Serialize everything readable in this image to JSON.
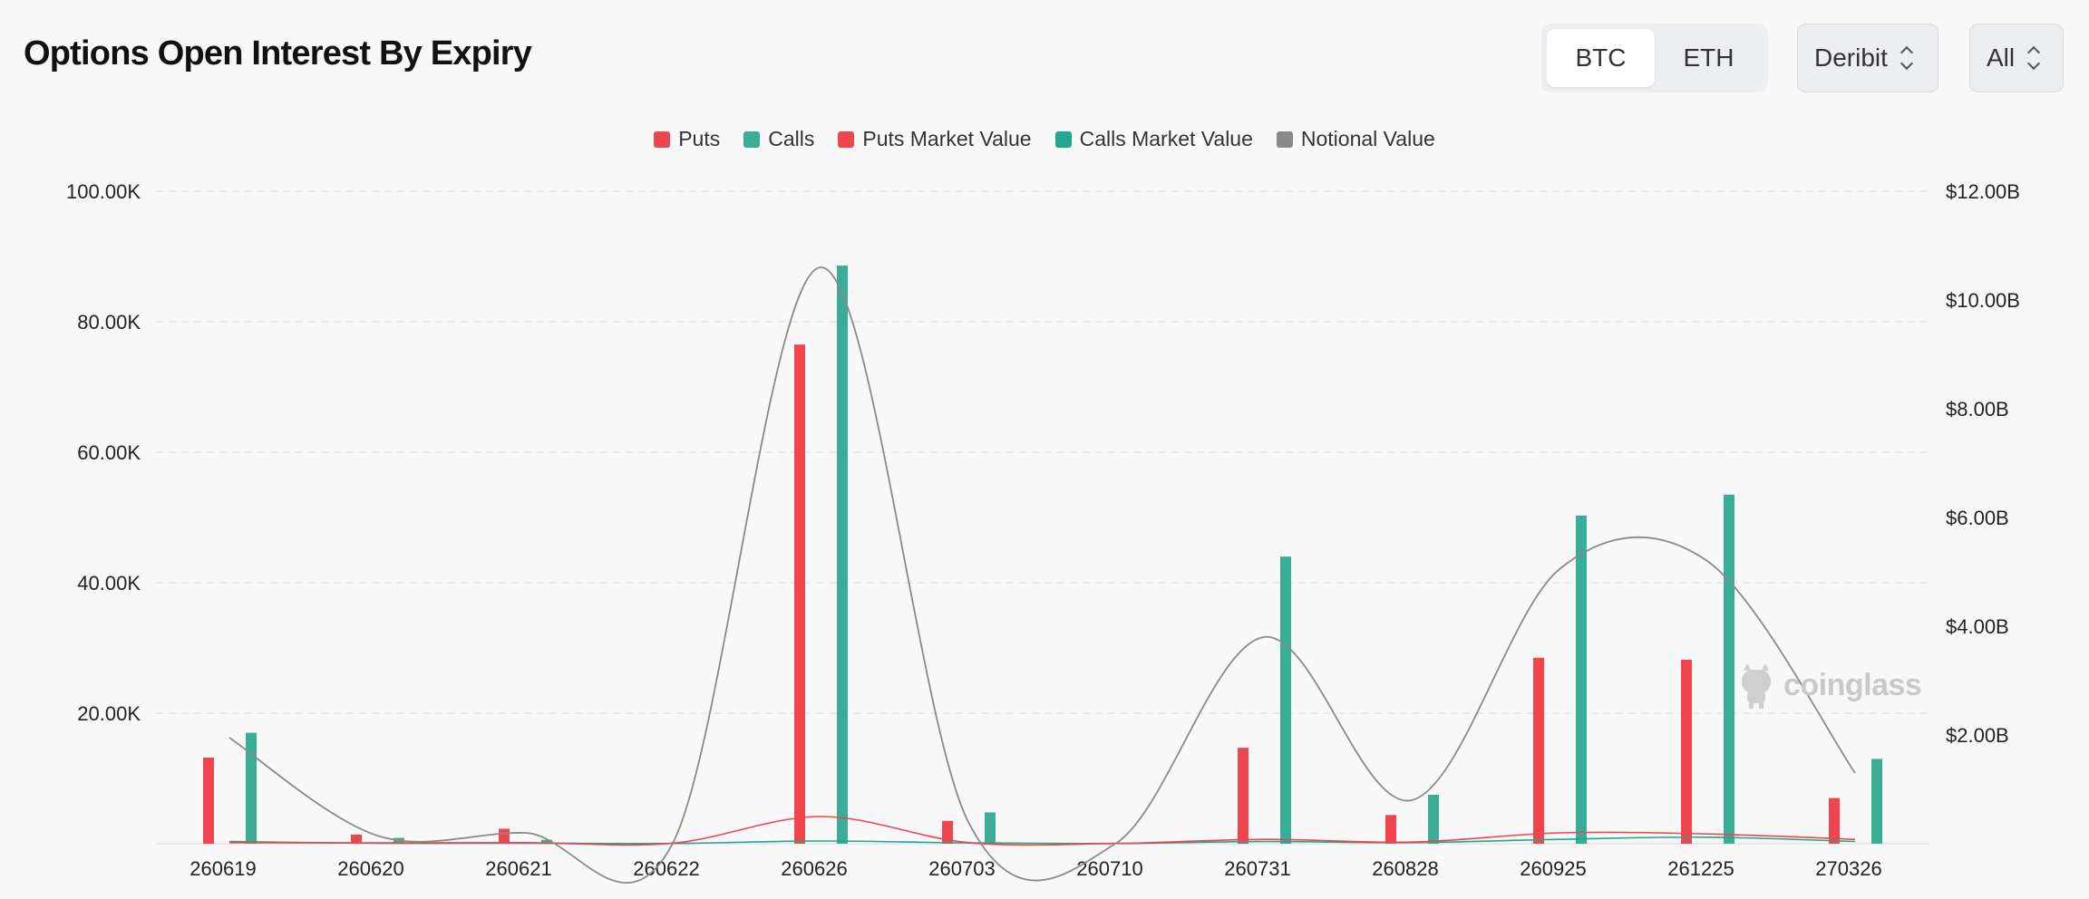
{
  "header": {
    "title": "Options Open Interest By Expiry"
  },
  "asset_toggle": {
    "options": [
      "BTC",
      "ETH"
    ],
    "selected": "BTC"
  },
  "exchange_select": {
    "value": "Deribit"
  },
  "range_select": {
    "value": "All"
  },
  "colors": {
    "puts": "#f0444f",
    "calls": "#3aad96",
    "puts_market_value": "#f0444f",
    "calls_market_value": "#22a68e",
    "notional_value": "#8a8a8a"
  },
  "watermark": {
    "text": "coinglass"
  },
  "chart_data": {
    "type": "bar",
    "categories": [
      "260619",
      "260620",
      "260621",
      "260622",
      "260626",
      "260703",
      "260710",
      "260731",
      "260828",
      "260925",
      "261225",
      "270326"
    ],
    "left_axis": {
      "ylim": [
        0,
        100000
      ],
      "ticks": [
        "20.00K",
        "40.00K",
        "60.00K",
        "80.00K",
        "100.00K"
      ],
      "tick_values": [
        20000,
        40000,
        60000,
        80000,
        100000
      ]
    },
    "right_axis": {
      "ylim": [
        0,
        12000000000
      ],
      "ticks": [
        "$2.00B",
        "$4.00B",
        "$6.00B",
        "$8.00B",
        "$10.00B",
        "$12.00B"
      ],
      "tick_values": [
        2000000000,
        4000000000,
        6000000000,
        8000000000,
        10000000000,
        12000000000
      ]
    },
    "legend": [
      "Puts",
      "Calls",
      "Puts Market Value",
      "Calls Market Value",
      "Notional Value"
    ],
    "legend_position": "top-center",
    "grid": true,
    "series": [
      {
        "name": "Puts",
        "type": "bar",
        "axis": "left",
        "values": [
          13200,
          1400,
          2300,
          0,
          76500,
          3500,
          0,
          14700,
          4400,
          28500,
          28200,
          7000
        ]
      },
      {
        "name": "Calls",
        "type": "bar",
        "axis": "left",
        "values": [
          17000,
          900,
          600,
          0,
          88600,
          4800,
          0,
          44000,
          7500,
          50300,
          53500,
          13000
        ]
      },
      {
        "name": "Puts Market Value",
        "type": "line",
        "axis": "right",
        "values": [
          20000000,
          15000000,
          20000000,
          10000000,
          500000000,
          20000000,
          5000000,
          80000000,
          30000000,
          200000000,
          180000000,
          80000000
        ]
      },
      {
        "name": "Calls Market Value",
        "type": "line",
        "axis": "right",
        "values": [
          40000000,
          10000000,
          10000000,
          5000000,
          50000000,
          15000000,
          5000000,
          40000000,
          20000000,
          80000000,
          120000000,
          40000000
        ]
      },
      {
        "name": "Notional Value",
        "type": "line",
        "axis": "right",
        "values": [
          1950000000,
          150000000,
          200000000,
          10000000,
          10600000000,
          400000000,
          10000000,
          3800000000,
          800000000,
          5050000000,
          5200000000,
          1300000000
        ]
      }
    ]
  }
}
